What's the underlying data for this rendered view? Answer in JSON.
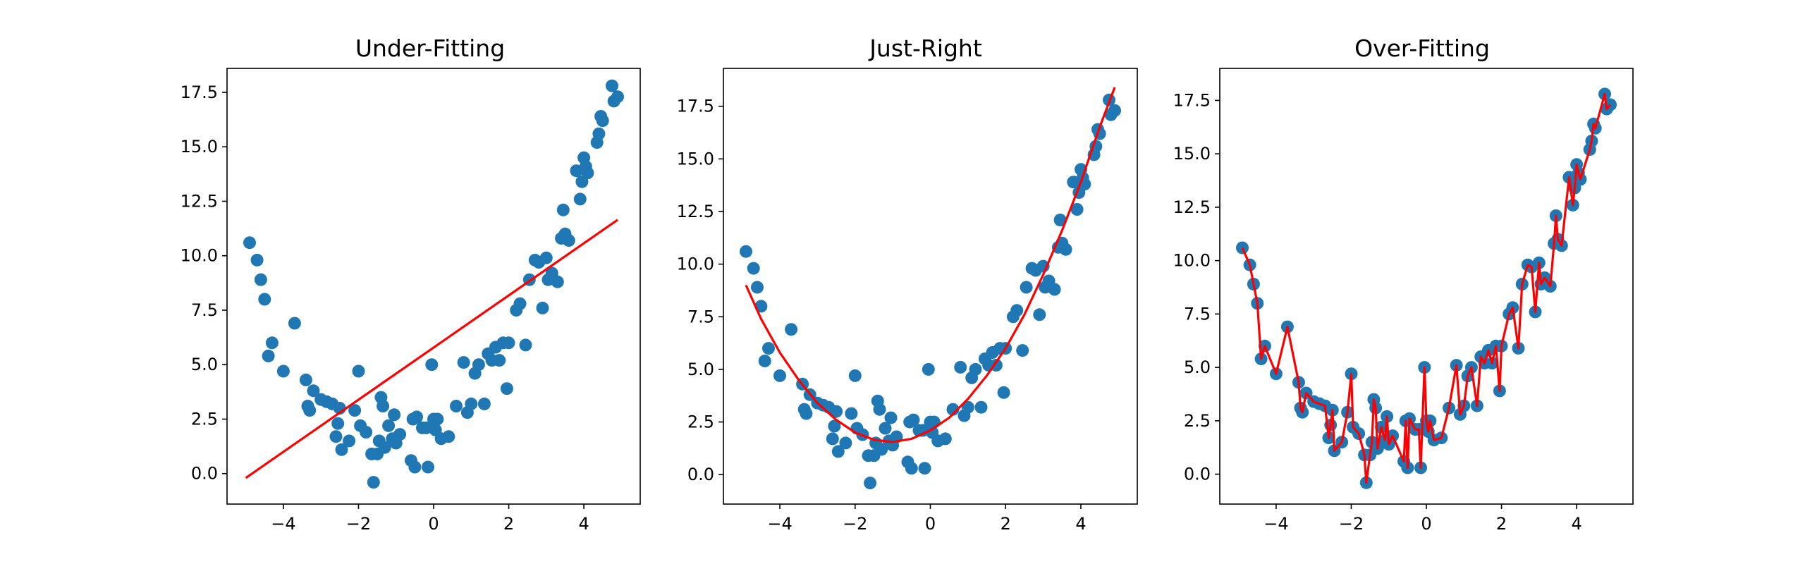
{
  "colors": {
    "points": "#1f77b4",
    "fit": "#ff0000",
    "background": "#ffffff"
  },
  "chart_data": [
    {
      "type": "scatter",
      "title": "Under-Fitting",
      "xlabel": "",
      "ylabel": "",
      "xlim": [
        -5.5,
        5.5
      ],
      "ylim": [
        -1.4,
        18.6
      ],
      "xticks": [
        -4,
        -2,
        0,
        2,
        4
      ],
      "xtick_labels": [
        "−4",
        "−2",
        "0",
        "2",
        "4"
      ],
      "yticks": [
        0.0,
        2.5,
        5.0,
        7.5,
        10.0,
        12.5,
        15.0,
        17.5
      ],
      "ytick_labels": [
        "0.0",
        "2.5",
        "5.0",
        "7.5",
        "10.0",
        "12.5",
        "15.0",
        "17.5"
      ],
      "grid": false,
      "points": {
        "x": [
          -4.9,
          -4.7,
          -4.6,
          -4.5,
          -4.4,
          -4.3,
          -4.0,
          -3.7,
          -3.4,
          -3.35,
          -3.3,
          -3.2,
          -3.0,
          -2.85,
          -2.7,
          -2.6,
          -2.55,
          -2.5,
          -2.45,
          -2.25,
          -2.1,
          -2.0,
          -1.95,
          -1.8,
          -1.65,
          -1.6,
          -1.5,
          -1.45,
          -1.4,
          -1.35,
          -1.3,
          -1.2,
          -1.1,
          -1.05,
          -1.0,
          -0.9,
          -0.6,
          -0.55,
          -0.5,
          -0.45,
          -0.3,
          -0.2,
          -0.15,
          -0.05,
          0.0,
          0.05,
          0.1,
          0.2,
          0.4,
          0.6,
          0.8,
          0.9,
          1.0,
          1.1,
          1.2,
          1.35,
          1.45,
          1.55,
          1.65,
          1.75,
          1.85,
          1.95,
          2.0,
          2.2,
          2.3,
          2.45,
          2.55,
          2.7,
          2.8,
          2.9,
          3.0,
          3.05,
          3.15,
          3.3,
          3.4,
          3.45,
          3.5,
          3.6,
          3.8,
          3.9,
          3.95,
          4.0,
          4.05,
          4.1,
          4.35,
          4.4,
          4.45,
          4.5,
          4.75,
          4.8,
          4.9
        ],
        "y": [
          10.6,
          9.8,
          8.9,
          8.0,
          5.4,
          6.0,
          4.7,
          6.9,
          4.3,
          3.1,
          2.9,
          3.8,
          3.4,
          3.3,
          3.2,
          1.7,
          2.3,
          3.0,
          1.1,
          1.5,
          2.9,
          4.7,
          2.2,
          1.9,
          0.9,
          -0.4,
          0.9,
          1.5,
          3.5,
          3.1,
          1.2,
          2.2,
          1.6,
          2.7,
          1.4,
          1.8,
          0.6,
          2.5,
          0.3,
          2.6,
          2.1,
          2.1,
          0.3,
          5.0,
          2.5,
          2.0,
          2.5,
          1.6,
          1.7,
          3.1,
          5.1,
          2.8,
          3.2,
          4.6,
          5.0,
          3.2,
          5.5,
          5.2,
          5.8,
          5.2,
          6.0,
          3.9,
          6.0,
          7.5,
          7.8,
          5.9,
          8.9,
          9.8,
          9.7,
          7.6,
          9.9,
          8.9,
          9.2,
          8.8,
          10.8,
          12.1,
          11.0,
          10.7,
          13.9,
          12.6,
          13.4,
          14.5,
          14.1,
          13.8,
          15.2,
          15.6,
          16.4,
          16.2,
          17.8,
          17.1,
          17.3
        ]
      },
      "fit": {
        "x": [
          -5.0,
          4.9
        ],
        "y": [
          -0.2,
          11.65
        ]
      }
    },
    {
      "type": "scatter",
      "title": "Just-Right",
      "xlabel": "",
      "ylabel": "",
      "xlim": [
        -5.5,
        5.5
      ],
      "ylim": [
        -1.4,
        19.3
      ],
      "xticks": [
        -4,
        -2,
        0,
        2,
        4
      ],
      "xtick_labels": [
        "−4",
        "−2",
        "0",
        "2",
        "4"
      ],
      "yticks": [
        0.0,
        2.5,
        5.0,
        7.5,
        10.0,
        12.5,
        15.0,
        17.5
      ],
      "ytick_labels": [
        "0.0",
        "2.5",
        "5.0",
        "7.5",
        "10.0",
        "12.5",
        "15.0",
        "17.5"
      ],
      "grid": false,
      "points": {
        "x": [
          -4.9,
          -4.7,
          -4.6,
          -4.5,
          -4.4,
          -4.3,
          -4.0,
          -3.7,
          -3.4,
          -3.35,
          -3.3,
          -3.2,
          -3.0,
          -2.85,
          -2.7,
          -2.6,
          -2.55,
          -2.5,
          -2.45,
          -2.25,
          -2.1,
          -2.0,
          -1.95,
          -1.8,
          -1.65,
          -1.6,
          -1.5,
          -1.45,
          -1.4,
          -1.35,
          -1.3,
          -1.2,
          -1.1,
          -1.05,
          -1.0,
          -0.9,
          -0.6,
          -0.55,
          -0.5,
          -0.45,
          -0.3,
          -0.2,
          -0.15,
          -0.05,
          0.0,
          0.05,
          0.1,
          0.2,
          0.4,
          0.6,
          0.8,
          0.9,
          1.0,
          1.1,
          1.2,
          1.35,
          1.45,
          1.55,
          1.65,
          1.75,
          1.85,
          1.95,
          2.0,
          2.2,
          2.3,
          2.45,
          2.55,
          2.7,
          2.8,
          2.9,
          3.0,
          3.05,
          3.15,
          3.3,
          3.4,
          3.45,
          3.5,
          3.6,
          3.8,
          3.9,
          3.95,
          4.0,
          4.05,
          4.1,
          4.35,
          4.4,
          4.45,
          4.5,
          4.75,
          4.8,
          4.9
        ],
        "y": [
          10.6,
          9.8,
          8.9,
          8.0,
          5.4,
          6.0,
          4.7,
          6.9,
          4.3,
          3.1,
          2.9,
          3.8,
          3.4,
          3.3,
          3.2,
          1.7,
          2.3,
          3.0,
          1.1,
          1.5,
          2.9,
          4.7,
          2.2,
          1.9,
          0.9,
          -0.4,
          0.9,
          1.5,
          3.5,
          3.1,
          1.2,
          2.2,
          1.6,
          2.7,
          1.4,
          1.8,
          0.6,
          2.5,
          0.3,
          2.6,
          2.1,
          2.1,
          0.3,
          5.0,
          2.5,
          2.0,
          2.5,
          1.6,
          1.7,
          3.1,
          5.1,
          2.8,
          3.2,
          4.6,
          5.0,
          3.2,
          5.5,
          5.2,
          5.8,
          5.2,
          6.0,
          3.9,
          6.0,
          7.5,
          7.8,
          5.9,
          8.9,
          9.8,
          9.7,
          7.6,
          9.9,
          8.9,
          9.2,
          8.8,
          10.8,
          12.1,
          11.0,
          10.7,
          13.9,
          12.6,
          13.4,
          14.5,
          14.1,
          13.8,
          15.2,
          15.6,
          16.4,
          16.2,
          17.8,
          17.1,
          17.3
        ]
      },
      "fit": {
        "x": [
          -4.9,
          -4.5,
          -4.0,
          -3.5,
          -3.0,
          -2.5,
          -2.0,
          -1.5,
          -1.0,
          -0.5,
          0.0,
          0.5,
          1.0,
          1.5,
          2.0,
          2.5,
          3.0,
          3.5,
          4.0,
          4.5,
          4.9
        ],
        "y": [
          9.0,
          7.4,
          5.8,
          4.5,
          3.4,
          2.6,
          2.0,
          1.65,
          1.55,
          1.7,
          2.1,
          2.7,
          3.6,
          4.7,
          6.0,
          7.6,
          9.5,
          11.6,
          13.9,
          16.5,
          18.4
        ]
      }
    },
    {
      "type": "scatter",
      "title": "Over-Fitting",
      "xlabel": "",
      "ylabel": "",
      "xlim": [
        -5.5,
        5.5
      ],
      "ylim": [
        -1.4,
        19.0
      ],
      "xticks": [
        -4,
        -2,
        0,
        2,
        4
      ],
      "xtick_labels": [
        "−4",
        "−2",
        "0",
        "2",
        "4"
      ],
      "yticks": [
        0.0,
        2.5,
        5.0,
        7.5,
        10.0,
        12.5,
        15.0,
        17.5
      ],
      "ytick_labels": [
        "0.0",
        "2.5",
        "5.0",
        "7.5",
        "10.0",
        "12.5",
        "15.0",
        "17.5"
      ],
      "grid": false,
      "points": {
        "x": [
          -4.9,
          -4.7,
          -4.6,
          -4.5,
          -4.4,
          -4.3,
          -4.0,
          -3.7,
          -3.4,
          -3.35,
          -3.3,
          -3.2,
          -3.0,
          -2.85,
          -2.7,
          -2.6,
          -2.55,
          -2.5,
          -2.45,
          -2.25,
          -2.1,
          -2.0,
          -1.95,
          -1.8,
          -1.65,
          -1.6,
          -1.5,
          -1.45,
          -1.4,
          -1.35,
          -1.3,
          -1.2,
          -1.1,
          -1.05,
          -1.0,
          -0.9,
          -0.6,
          -0.55,
          -0.5,
          -0.45,
          -0.3,
          -0.2,
          -0.15,
          -0.05,
          0.0,
          0.05,
          0.1,
          0.2,
          0.4,
          0.6,
          0.8,
          0.9,
          1.0,
          1.1,
          1.2,
          1.35,
          1.45,
          1.55,
          1.65,
          1.75,
          1.85,
          1.95,
          2.0,
          2.2,
          2.3,
          2.45,
          2.55,
          2.7,
          2.8,
          2.9,
          3.0,
          3.05,
          3.15,
          3.3,
          3.4,
          3.45,
          3.5,
          3.6,
          3.8,
          3.9,
          3.95,
          4.0,
          4.05,
          4.1,
          4.35,
          4.4,
          4.45,
          4.5,
          4.75,
          4.8,
          4.9
        ],
        "y": [
          10.6,
          9.8,
          8.9,
          8.0,
          5.4,
          6.0,
          4.7,
          6.9,
          4.3,
          3.1,
          2.9,
          3.8,
          3.4,
          3.3,
          3.2,
          1.7,
          2.3,
          3.0,
          1.1,
          1.5,
          2.9,
          4.7,
          2.2,
          1.9,
          0.9,
          -0.4,
          0.9,
          1.5,
          3.5,
          3.1,
          1.2,
          2.2,
          1.6,
          2.7,
          1.4,
          1.8,
          0.6,
          2.5,
          0.3,
          2.6,
          2.1,
          2.1,
          0.3,
          5.0,
          2.5,
          2.0,
          2.5,
          1.6,
          1.7,
          3.1,
          5.1,
          2.8,
          3.2,
          4.6,
          5.0,
          3.2,
          5.5,
          5.2,
          5.8,
          5.2,
          6.0,
          3.9,
          6.0,
          7.5,
          7.8,
          5.9,
          8.9,
          9.8,
          9.7,
          7.6,
          9.9,
          8.9,
          9.2,
          8.8,
          10.8,
          12.1,
          11.0,
          10.7,
          13.9,
          12.6,
          13.4,
          14.5,
          14.1,
          13.8,
          15.2,
          15.6,
          16.4,
          16.2,
          17.8,
          17.1,
          17.3
        ]
      },
      "fit": {
        "x": [
          -4.9,
          -4.7,
          -4.6,
          -4.5,
          -4.4,
          -4.3,
          -4.0,
          -3.7,
          -3.4,
          -3.35,
          -3.3,
          -3.2,
          -3.0,
          -2.85,
          -2.7,
          -2.6,
          -2.55,
          -2.5,
          -2.45,
          -2.25,
          -2.1,
          -2.0,
          -1.95,
          -1.8,
          -1.65,
          -1.6,
          -1.5,
          -1.45,
          -1.4,
          -1.35,
          -1.3,
          -1.2,
          -1.1,
          -1.05,
          -1.0,
          -0.9,
          -0.6,
          -0.55,
          -0.5,
          -0.45,
          -0.3,
          -0.2,
          -0.15,
          -0.05,
          0.0,
          0.05,
          0.1,
          0.2,
          0.4,
          0.6,
          0.8,
          0.9,
          1.0,
          1.1,
          1.2,
          1.35,
          1.45,
          1.55,
          1.65,
          1.75,
          1.85,
          1.95,
          2.0,
          2.2,
          2.3,
          2.45,
          2.55,
          2.7,
          2.8,
          2.9,
          3.0,
          3.05,
          3.15,
          3.3,
          3.4,
          3.45,
          3.5,
          3.6,
          3.8,
          3.9,
          3.95,
          4.0,
          4.05,
          4.1,
          4.35,
          4.4,
          4.45,
          4.5,
          4.75,
          4.8,
          4.9
        ],
        "y": [
          10.6,
          9.8,
          8.9,
          8.0,
          5.4,
          6.0,
          4.7,
          6.9,
          4.3,
          3.1,
          2.9,
          3.8,
          3.4,
          3.3,
          3.2,
          1.7,
          2.3,
          3.0,
          1.1,
          1.5,
          2.9,
          4.7,
          2.2,
          1.9,
          0.9,
          -0.4,
          0.9,
          1.5,
          3.5,
          3.1,
          1.2,
          2.2,
          1.6,
          2.7,
          1.4,
          1.8,
          0.6,
          2.5,
          0.3,
          2.6,
          2.1,
          2.1,
          0.3,
          5.0,
          2.5,
          2.0,
          2.5,
          1.6,
          1.7,
          3.1,
          5.1,
          2.8,
          3.2,
          4.6,
          5.0,
          3.2,
          5.5,
          5.2,
          5.8,
          5.2,
          6.0,
          3.9,
          6.0,
          7.5,
          7.8,
          5.9,
          8.9,
          9.8,
          9.7,
          7.6,
          9.9,
          8.9,
          9.2,
          8.8,
          10.8,
          12.1,
          11.0,
          10.7,
          13.9,
          12.6,
          13.4,
          14.5,
          14.1,
          13.8,
          15.2,
          15.6,
          16.4,
          16.2,
          17.8,
          17.1,
          17.3
        ]
      }
    }
  ]
}
